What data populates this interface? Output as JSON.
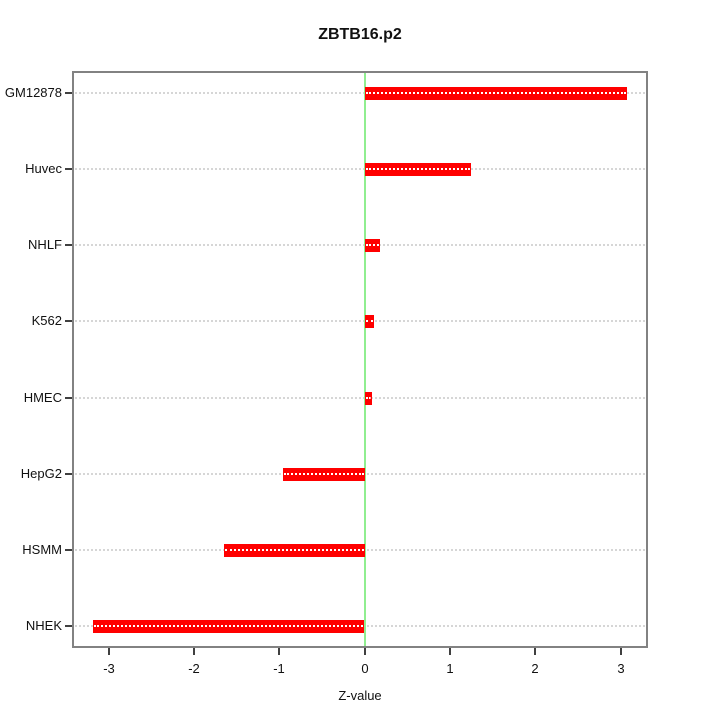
{
  "figure": {
    "title": "ZBTB16.p2",
    "x_axis_label": "Z-value"
  },
  "chart_data": {
    "type": "bar",
    "orientation": "horizontal",
    "title": "ZBTB16.p2",
    "xlabel": "Z-value",
    "ylabel": "",
    "categories": [
      "GM12878",
      "Huvec",
      "NHLF",
      "K562",
      "HMEC",
      "HepG2",
      "HSMM",
      "NHEK"
    ],
    "values": [
      3.07,
      1.24,
      0.17,
      0.1,
      0.08,
      -0.96,
      -1.65,
      -3.18
    ],
    "xticks": [
      -3,
      -2,
      -1,
      0,
      1,
      2,
      3
    ],
    "xlim": [
      -3.43,
      3.32
    ],
    "grid": "horizontal-dotted",
    "legend": "none",
    "zero_reference_line": 0,
    "colors": {
      "bar": "#ff0000",
      "bar_centerline": "#ffffff",
      "zero_line": "#90ee90",
      "grid": "#d6d6d6",
      "box": "#828282",
      "tick": "#404040",
      "text": "#111111",
      "background": "#ffffff"
    }
  }
}
